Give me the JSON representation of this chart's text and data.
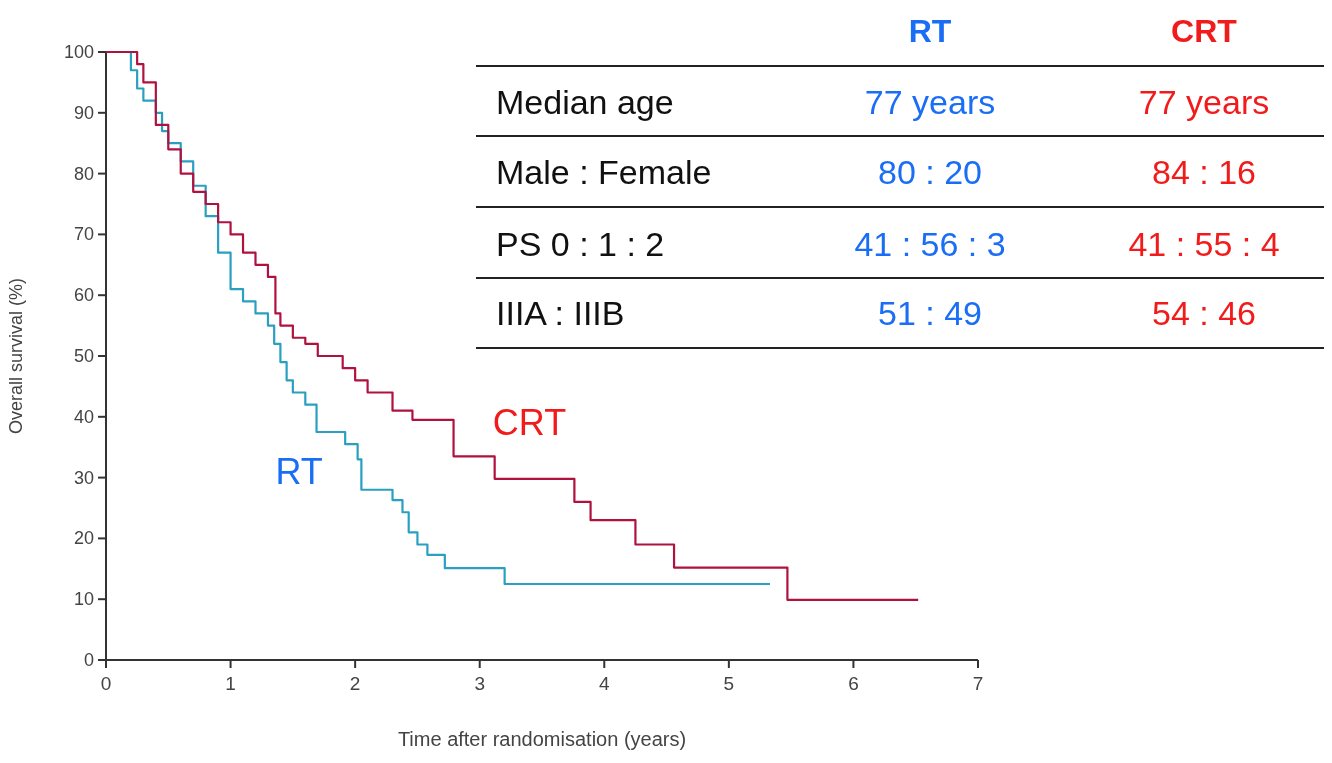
{
  "chart_data": {
    "type": "step",
    "xlabel": "Time after randomisation (years)",
    "ylabel": "Overall survival (%)",
    "xlim": [
      0,
      7
    ],
    "xticks": [
      0,
      1,
      2,
      3,
      4,
      5,
      6,
      7
    ],
    "ylim": [
      0,
      100
    ],
    "yticks": [
      0,
      10,
      20,
      30,
      40,
      50,
      60,
      70,
      80,
      90,
      100
    ],
    "grid": false,
    "series": [
      {
        "name": "RT",
        "color": "#2aa0c0",
        "x": [
          0,
          0.2,
          0.25,
          0.3,
          0.4,
          0.45,
          0.5,
          0.6,
          0.7,
          0.8,
          0.9,
          1.0,
          1.1,
          1.2,
          1.3,
          1.35,
          1.4,
          1.45,
          1.5,
          1.6,
          1.69,
          1.92,
          2.02,
          2.05,
          2.3,
          2.38,
          2.43,
          2.5,
          2.58,
          2.72,
          3.2,
          5.33
        ],
        "values": [
          100,
          97,
          94,
          92,
          90,
          87,
          85,
          82,
          78,
          73,
          67,
          61,
          59,
          57,
          55,
          52,
          49,
          46,
          44,
          42,
          37.5,
          35.5,
          33,
          28,
          26.3,
          24.3,
          21,
          19,
          17.3,
          15.1,
          12.5,
          12.5
        ]
      },
      {
        "name": "CRT",
        "color": "#b0123f",
        "x": [
          0,
          0.25,
          0.3,
          0.4,
          0.5,
          0.6,
          0.7,
          0.8,
          0.9,
          1.0,
          1.1,
          1.2,
          1.3,
          1.36,
          1.4,
          1.5,
          1.6,
          1.7,
          1.9,
          2.0,
          2.1,
          2.3,
          2.46,
          2.79,
          3.12,
          3.76,
          3.89,
          4.25,
          4.56,
          5.47,
          6.52
        ],
        "values": [
          100,
          98,
          95,
          88,
          84,
          80,
          77,
          75,
          72,
          70,
          67,
          65,
          63,
          57,
          55,
          53,
          52,
          50,
          48,
          46,
          44,
          41,
          39.5,
          33.5,
          29.8,
          26,
          23,
          19,
          15.2,
          9.9,
          9.9
        ]
      }
    ],
    "annotations": [
      "RT",
      "CRT",
      "Median age",
      "77 years",
      "77 years",
      "Male : Female",
      "80 : 20",
      "84 : 16",
      "PS 0 : 1 : 2",
      "41 : 56 : 3",
      "41 : 55 : 4",
      "IIIA : IIIB",
      "51 : 49",
      "54 : 46"
    ]
  }
}
